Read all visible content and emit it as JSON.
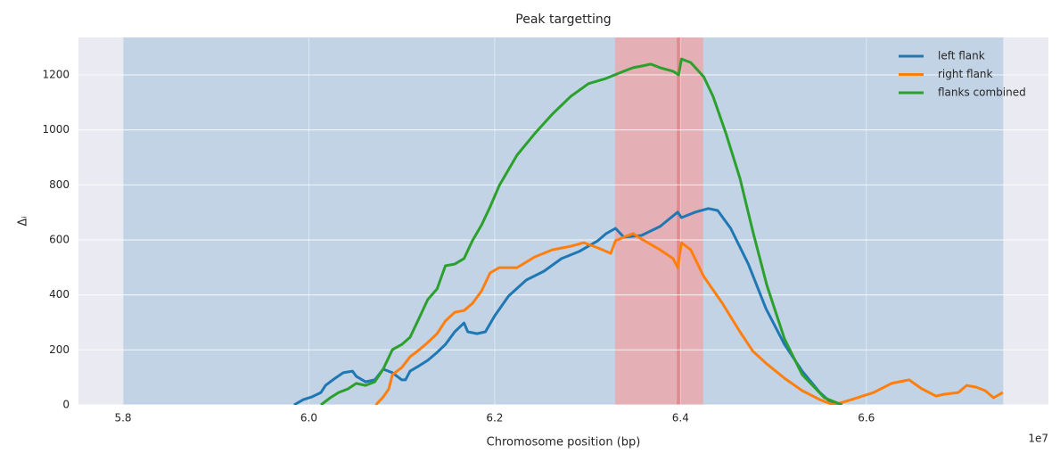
{
  "chart_data": {
    "type": "line",
    "title": "Peak targetting",
    "xlabel": "Chromosome position (bp)",
    "ylabel": "Δᵢ",
    "x_offset_label": "1e7",
    "xlim": [
      5.752,
      6.796
    ],
    "ylim": [
      0,
      1336
    ],
    "xticks": [
      5.8,
      {
        "value": 6,
        "label": "6.0"
      },
      6.2,
      6.4,
      6.6
    ],
    "yticks": [
      0,
      200,
      400,
      600,
      800,
      1000,
      1200
    ],
    "grid": true,
    "legend": "upper right",
    "spans": [
      {
        "start": 5.8,
        "end": 6.747,
        "color": "#c2d3e5"
      },
      {
        "start": 6.33,
        "end": 6.424,
        "color": "#e4afb5"
      }
    ],
    "vline": {
      "x": 6.398,
      "color": "#e08a90"
    },
    "series": [
      {
        "name": "left flank",
        "color": "#1f77b4",
        "x": [
          5.984,
          5.994,
          6.003,
          6.013,
          6.018,
          6.027,
          6.037,
          6.047,
          6.051,
          6.061,
          6.071,
          6.08,
          6.09,
          6.1,
          6.104,
          6.109,
          6.119,
          6.128,
          6.138,
          6.147,
          6.157,
          6.167,
          6.171,
          6.181,
          6.19,
          6.2,
          6.215,
          6.234,
          6.253,
          6.272,
          6.291,
          6.311,
          6.32,
          6.33,
          6.339,
          6.358,
          6.378,
          6.397,
          6.401,
          6.416,
          6.43,
          6.44,
          6.454,
          6.473,
          6.492,
          6.512,
          6.531,
          6.55,
          6.565
        ],
        "values": [
          0,
          19,
          29,
          45,
          71,
          94,
          117,
          123,
          104,
          84,
          91,
          130,
          117,
          91,
          91,
          123,
          143,
          162,
          191,
          220,
          266,
          298,
          266,
          259,
          266,
          324,
          396,
          454,
          486,
          532,
          558,
          597,
          623,
          642,
          610,
          616,
          649,
          701,
          681,
          701,
          714,
          707,
          642,
          512,
          350,
          220,
          123,
          45,
          0
        ]
      },
      {
        "name": "right flank",
        "color": "#ff7f0e",
        "x": [
          6.072,
          6.08,
          6.086,
          6.09,
          6.1,
          6.109,
          6.119,
          6.128,
          6.138,
          6.147,
          6.157,
          6.167,
          6.176,
          6.186,
          6.195,
          6.205,
          6.224,
          6.243,
          6.262,
          6.282,
          6.296,
          6.311,
          6.325,
          6.33,
          6.339,
          6.349,
          6.358,
          6.378,
          6.392,
          6.397,
          6.401,
          6.411,
          6.425,
          6.445,
          6.464,
          6.478,
          6.493,
          6.512,
          6.531,
          6.55,
          6.565,
          6.584,
          6.608,
          6.627,
          6.646,
          6.66,
          6.675,
          6.684,
          6.699,
          6.708,
          6.718,
          6.728,
          6.737,
          6.747
        ],
        "values": [
          0,
          29,
          58,
          110,
          136,
          175,
          201,
          227,
          259,
          305,
          337,
          343,
          369,
          415,
          480,
          499,
          499,
          538,
          564,
          577,
          590,
          571,
          551,
          597,
          610,
          623,
          603,
          564,
          532,
          499,
          590,
          564,
          467,
          370,
          266,
          195,
          149,
          97,
          52,
          19,
          0,
          19,
          45,
          78,
          91,
          58,
          32,
          39,
          45,
          71,
          65,
          52,
          26,
          45
        ]
      },
      {
        "name": "flanks combined",
        "color": "#2ca02c",
        "x": [
          6.013,
          6.023,
          6.032,
          6.042,
          6.051,
          6.061,
          6.071,
          6.08,
          6.09,
          6.1,
          6.109,
          6.119,
          6.128,
          6.138,
          6.147,
          6.157,
          6.167,
          6.176,
          6.186,
          6.195,
          6.205,
          6.224,
          6.243,
          6.262,
          6.282,
          6.301,
          6.32,
          6.339,
          6.349,
          6.358,
          6.368,
          6.378,
          6.392,
          6.398,
          6.401,
          6.411,
          6.425,
          6.435,
          6.449,
          6.464,
          6.478,
          6.493,
          6.512,
          6.531,
          6.555,
          6.574
        ],
        "values": [
          0,
          26,
          45,
          58,
          78,
          71,
          84,
          130,
          201,
          220,
          246,
          318,
          383,
          422,
          506,
          512,
          532,
          597,
          655,
          720,
          798,
          908,
          986,
          1057,
          1122,
          1168,
          1187,
          1213,
          1226,
          1232,
          1239,
          1226,
          1213,
          1200,
          1258,
          1245,
          1193,
          1122,
          986,
          824,
          629,
          435,
          240,
          110,
          26,
          0
        ]
      }
    ]
  }
}
